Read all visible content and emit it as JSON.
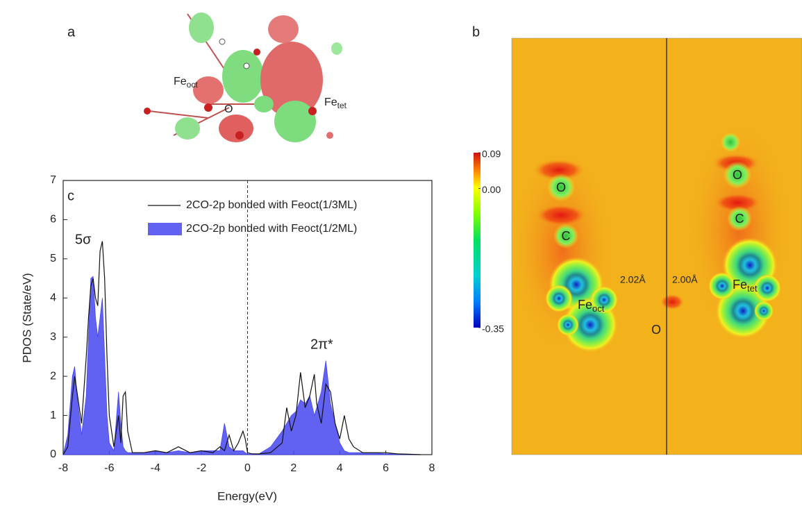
{
  "panel_a": {
    "label": "a",
    "atom_labels": [
      {
        "text": "Fe",
        "sub": "oct"
      },
      {
        "text": "O"
      },
      {
        "text": "Fe",
        "sub": "tet"
      }
    ]
  },
  "panel_b": {
    "label": "b",
    "colorbar": {
      "lim": [
        -0.35,
        0.09
      ],
      "ticks": [
        0.09,
        {
          "value": 0,
          "label": "0.00"
        },
        -0.35
      ]
    },
    "atom_labels": [
      {
        "text": "O"
      },
      {
        "text": "C"
      },
      {
        "text": "Fe",
        "sub": "oct"
      },
      {
        "text": "O"
      },
      {
        "text": "O"
      },
      {
        "text": "C"
      },
      {
        "text": "Fe",
        "sub": "tet"
      }
    ],
    "distances": [
      "2.02Å",
      "2.00Å"
    ]
  },
  "chart_data": {
    "type": "line",
    "label": "c",
    "xlabel": "Energy(eV)",
    "ylabel": "PDOS (State/eV)",
    "xlim": [
      -8,
      8
    ],
    "xticks": [
      -8,
      -6,
      -4,
      -2,
      0,
      2,
      4,
      6,
      8
    ],
    "ylim": [
      0,
      7
    ],
    "yticks": [
      0,
      1,
      2,
      3,
      4,
      5,
      6,
      7
    ],
    "reference_x": 0,
    "annotations": [
      "5σ",
      "2π*"
    ],
    "x": [
      -8,
      -7.8,
      -7.6,
      -7.5,
      -7.4,
      -7.2,
      -7.0,
      -6.9,
      -6.8,
      -6.7,
      -6.6,
      -6.5,
      -6.4,
      -6.3,
      -6.2,
      -6.1,
      -6.0,
      -5.8,
      -5.6,
      -5.5,
      -5.4,
      -5.3,
      -5.2,
      -5.0,
      -4.5,
      -4.0,
      -3.5,
      -3.0,
      -2.5,
      -2.0,
      -1.5,
      -1.2,
      -1.0,
      -0.8,
      -0.6,
      -0.4,
      -0.2,
      -0.1,
      0,
      0.2,
      0.5,
      1.0,
      1.5,
      1.7,
      1.9,
      2.1,
      2.3,
      2.5,
      2.7,
      2.9,
      3.0,
      3.2,
      3.4,
      3.6,
      3.8,
      4.0,
      4.2,
      4.4,
      4.6,
      5,
      5.5,
      6,
      6.5,
      7,
      7.5
    ],
    "series": [
      {
        "name": "2CO-2p bonded with Feoct(1/3ML)",
        "color": "#111111",
        "fill": false,
        "values": [
          0,
          0.2,
          1.5,
          2.0,
          1.6,
          0.8,
          2.5,
          3.5,
          4.3,
          4.5,
          4.0,
          3.8,
          5.2,
          5.45,
          4.5,
          2.5,
          1.0,
          0.2,
          1.0,
          0.3,
          1.5,
          1.6,
          0.6,
          0.05,
          0.05,
          0.1,
          0.05,
          0.2,
          0.05,
          0.1,
          0.05,
          0.2,
          0.1,
          0.5,
          0.1,
          0.3,
          0.6,
          0.4,
          0.05,
          0.02,
          0.02,
          0.05,
          0.3,
          1.2,
          0.6,
          1.0,
          2.1,
          1.2,
          1.5,
          2.05,
          1.3,
          0.8,
          1.8,
          1.6,
          0.8,
          0.4,
          1.0,
          0.4,
          0.2,
          0.05,
          0.05,
          0.05,
          0.02,
          0.01,
          0
        ]
      },
      {
        "name": "2CO-2p bonded with Feoct(1/2ML)",
        "color": "#4646f0",
        "fill": true,
        "values": [
          0,
          0.5,
          2.0,
          2.25,
          1.5,
          0.5,
          1.5,
          3.0,
          4.5,
          4.55,
          3.5,
          3.0,
          3.5,
          4.0,
          2.5,
          1.0,
          0.3,
          0.1,
          1.6,
          0.8,
          0.2,
          0.1,
          0.05,
          0.05,
          0.05,
          0.1,
          0.05,
          0.1,
          0.05,
          0.1,
          0.1,
          0.1,
          0.8,
          0.2,
          0.1,
          0.1,
          0.1,
          0.05,
          0.02,
          0.01,
          0.02,
          0.2,
          0.6,
          0.8,
          1.0,
          1.1,
          1.4,
          1.3,
          1.5,
          1.0,
          1.2,
          1.6,
          2.4,
          1.3,
          0.8,
          0.3,
          0.1,
          0.05,
          0.05,
          0.05,
          0.05,
          0.02,
          0.02,
          0.01,
          0
        ]
      }
    ]
  }
}
